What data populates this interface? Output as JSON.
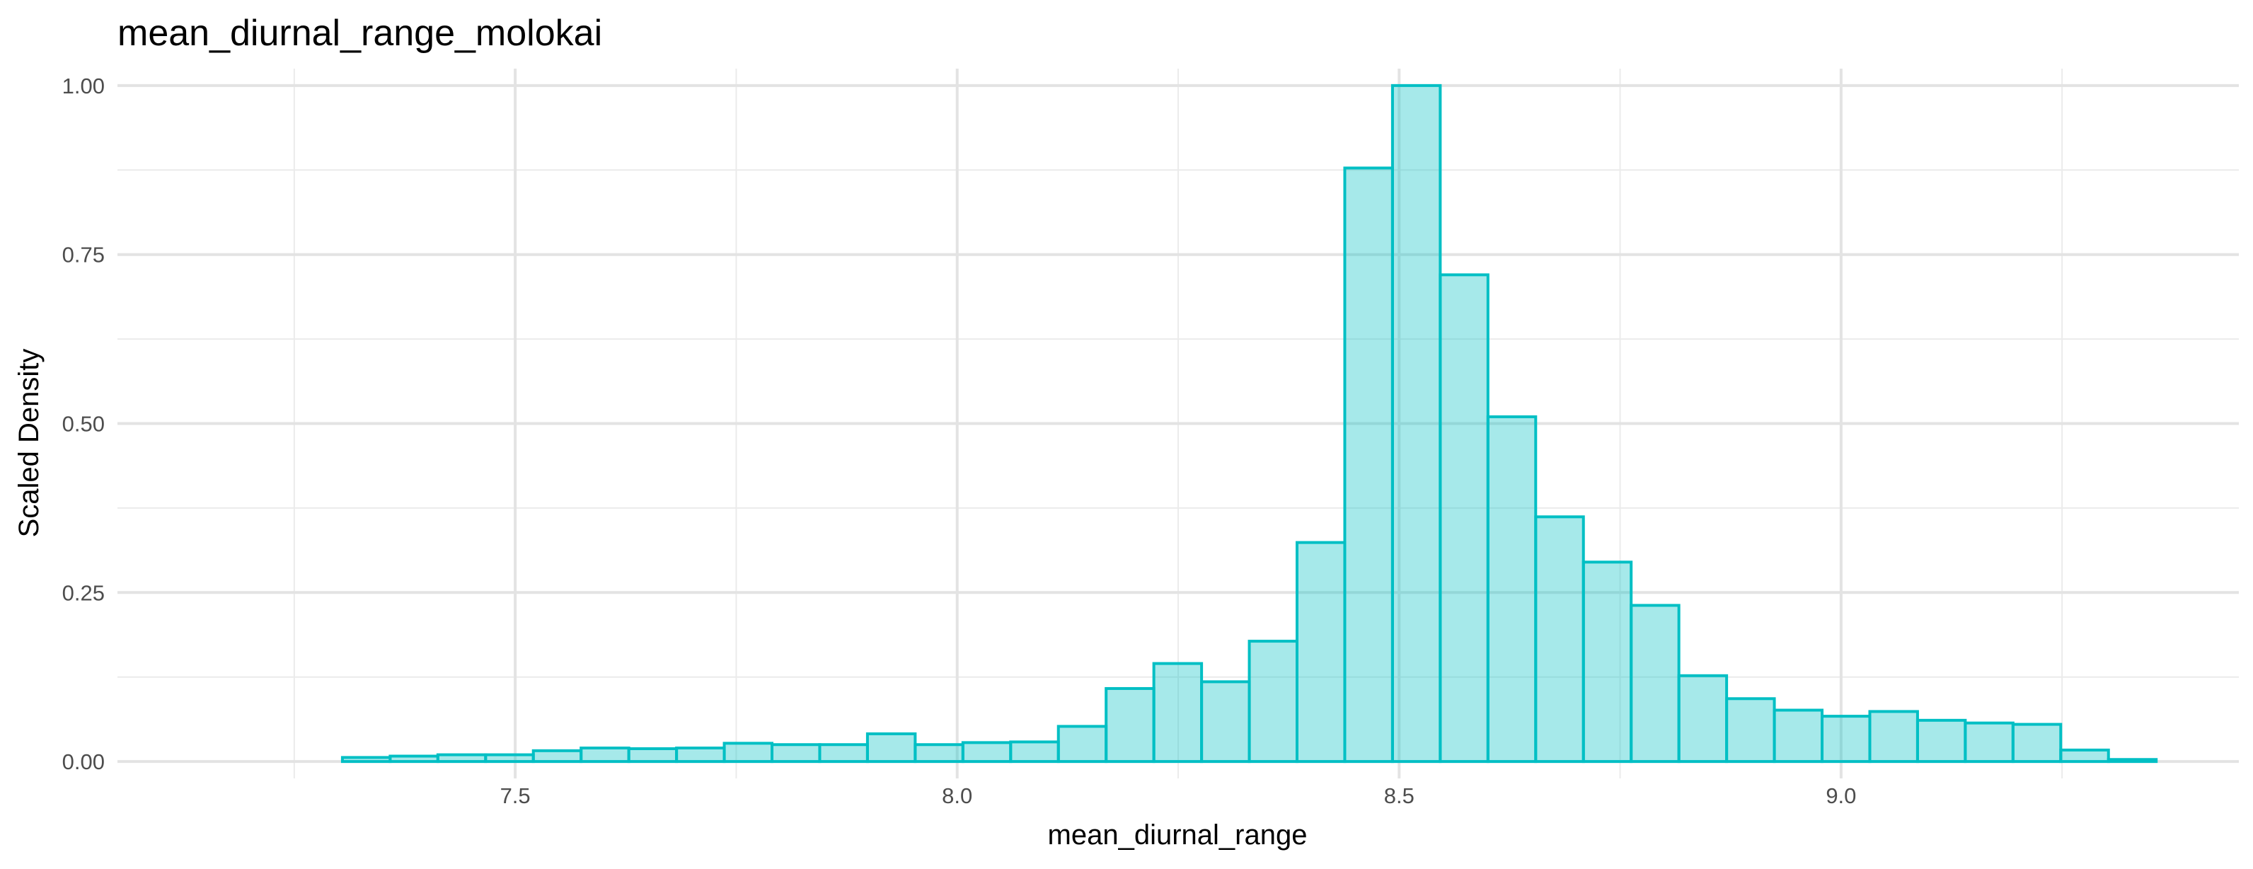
{
  "chart_data": {
    "type": "bar",
    "title": "mean_diurnal_range_molokai",
    "xlabel": "mean_diurnal_range",
    "ylabel": "Scaled Density",
    "xlim": [
      7.05,
      9.45
    ],
    "ylim": [
      -0.025,
      1.025
    ],
    "x_ticks": [
      {
        "value": 7.5,
        "label": "7.5"
      },
      {
        "value": 8.0,
        "label": "8.0"
      },
      {
        "value": 8.5,
        "label": "8.5"
      },
      {
        "value": 9.0,
        "label": "9.0"
      }
    ],
    "y_ticks": [
      {
        "value": 0.0,
        "label": "0.00"
      },
      {
        "value": 0.25,
        "label": "0.25"
      },
      {
        "value": 0.5,
        "label": "0.50"
      },
      {
        "value": 0.75,
        "label": "0.75"
      },
      {
        "value": 1.0,
        "label": "1.00"
      }
    ],
    "x_minor_breaks": [
      7.25,
      7.75,
      8.25,
      8.75,
      9.25
    ],
    "y_minor_breaks": [
      0.125,
      0.375,
      0.625,
      0.875
    ],
    "grid": true,
    "fill_color": "#00BFC4",
    "fill_opacity": 0.35,
    "bins": [
      {
        "x0": 7.3045,
        "x1": 7.3585,
        "value": 0.006
      },
      {
        "x0": 7.3585,
        "x1": 7.4125,
        "value": 0.008
      },
      {
        "x0": 7.4125,
        "x1": 7.4665,
        "value": 0.01
      },
      {
        "x0": 7.4665,
        "x1": 7.5205,
        "value": 0.01
      },
      {
        "x0": 7.5205,
        "x1": 7.5745,
        "value": 0.016
      },
      {
        "x0": 7.5745,
        "x1": 7.6285,
        "value": 0.02
      },
      {
        "x0": 7.6285,
        "x1": 7.6825,
        "value": 0.019
      },
      {
        "x0": 7.6825,
        "x1": 7.7365,
        "value": 0.02
      },
      {
        "x0": 7.7365,
        "x1": 7.7905,
        "value": 0.027
      },
      {
        "x0": 7.7905,
        "x1": 7.8445,
        "value": 0.025
      },
      {
        "x0": 7.8445,
        "x1": 7.8985,
        "value": 0.025
      },
      {
        "x0": 7.8985,
        "x1": 7.9525,
        "value": 0.041
      },
      {
        "x0": 7.9525,
        "x1": 8.0065,
        "value": 0.025
      },
      {
        "x0": 8.0065,
        "x1": 8.0605,
        "value": 0.028
      },
      {
        "x0": 8.0605,
        "x1": 8.1145,
        "value": 0.029
      },
      {
        "x0": 8.1145,
        "x1": 8.1685,
        "value": 0.052
      },
      {
        "x0": 8.1685,
        "x1": 8.2225,
        "value": 0.108
      },
      {
        "x0": 8.2225,
        "x1": 8.2765,
        "value": 0.145
      },
      {
        "x0": 8.2765,
        "x1": 8.3305,
        "value": 0.118
      },
      {
        "x0": 8.3305,
        "x1": 8.3845,
        "value": 0.178
      },
      {
        "x0": 8.3845,
        "x1": 8.4385,
        "value": 0.324
      },
      {
        "x0": 8.4385,
        "x1": 8.4925,
        "value": 0.878
      },
      {
        "x0": 8.4925,
        "x1": 8.5465,
        "value": 1.0
      },
      {
        "x0": 8.5465,
        "x1": 8.6005,
        "value": 0.72
      },
      {
        "x0": 8.6005,
        "x1": 8.6545,
        "value": 0.51
      },
      {
        "x0": 8.6545,
        "x1": 8.7085,
        "value": 0.362
      },
      {
        "x0": 8.7085,
        "x1": 8.7625,
        "value": 0.295
      },
      {
        "x0": 8.7625,
        "x1": 8.8165,
        "value": 0.231
      },
      {
        "x0": 8.8165,
        "x1": 8.8705,
        "value": 0.127
      },
      {
        "x0": 8.8705,
        "x1": 8.9245,
        "value": 0.093
      },
      {
        "x0": 8.9245,
        "x1": 8.9785,
        "value": 0.076
      },
      {
        "x0": 8.9785,
        "x1": 9.0325,
        "value": 0.067
      },
      {
        "x0": 9.0325,
        "x1": 9.0865,
        "value": 0.074
      },
      {
        "x0": 9.0865,
        "x1": 9.1405,
        "value": 0.061
      },
      {
        "x0": 9.1405,
        "x1": 9.1945,
        "value": 0.057
      },
      {
        "x0": 9.1945,
        "x1": 9.2485,
        "value": 0.055
      },
      {
        "x0": 9.2485,
        "x1": 9.3025,
        "value": 0.017
      },
      {
        "x0": 9.3025,
        "x1": 9.3565,
        "value": 0.003
      }
    ]
  }
}
